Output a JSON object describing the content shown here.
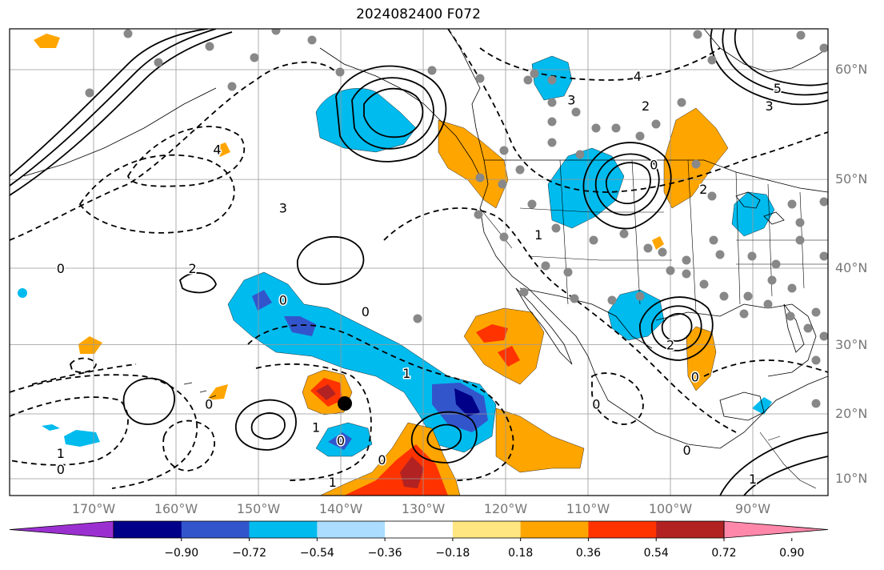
{
  "title": "2024082400 F072",
  "lat_labels": [
    {
      "label": "60°N",
      "lat": 60
    },
    {
      "label": "50°N",
      "lat": 50
    },
    {
      "label": "40°N",
      "lat": 40
    },
    {
      "label": "30°N",
      "lat": 30
    },
    {
      "label": "20°N",
      "lat": 20
    },
    {
      "label": "10°N",
      "lat": 10
    }
  ],
  "lon_labels": [
    {
      "label": "170°W",
      "lon": -170
    },
    {
      "label": "160°W",
      "lon": -160
    },
    {
      "label": "150°W",
      "lon": -150
    },
    {
      "label": "140°W",
      "lon": -140
    },
    {
      "label": "130°W",
      "lon": -130
    },
    {
      "label": "120°W",
      "lon": -120
    },
    {
      "label": "110°W",
      "lon": -110
    },
    {
      "label": "100°W",
      "lon": -100
    },
    {
      "label": "90°W",
      "lon": -90
    }
  ],
  "colorbar": {
    "colors": [
      "#9b30d0",
      "#000088",
      "#3355cc",
      "#00bbee",
      "#aaddff",
      "#ffffff",
      "#ffe680",
      "#ffa500",
      "#ff3300",
      "#b22222",
      "#ff88aa"
    ],
    "tick_labels": [
      "−0.90",
      "−0.72",
      "−0.54",
      "−0.36",
      "−0.18",
      "0.18",
      "0.36",
      "0.54",
      "0.72",
      "0.90"
    ]
  },
  "contour_labels": [
    {
      "text": "0",
      "lon": -174,
      "lat": 40
    },
    {
      "text": "2",
      "lon": -158,
      "lat": 40
    },
    {
      "text": "3",
      "lon": -147,
      "lat": 47
    },
    {
      "text": "4",
      "lon": -155,
      "lat": 53
    },
    {
      "text": "0",
      "lon": -147,
      "lat": 36
    },
    {
      "text": "0",
      "lon": -137,
      "lat": 34.5
    },
    {
      "text": "1",
      "lon": -132,
      "lat": 26
    },
    {
      "text": "0",
      "lon": -156,
      "lat": 21.5
    },
    {
      "text": "1",
      "lon": -143,
      "lat": 18
    },
    {
      "text": "0",
      "lon": -140,
      "lat": 16
    },
    {
      "text": "0",
      "lon": -135,
      "lat": 13
    },
    {
      "text": "1",
      "lon": -141,
      "lat": 9.5
    },
    {
      "text": "1",
      "lon": -174,
      "lat": 14
    },
    {
      "text": "0",
      "lon": -174,
      "lat": 11.5
    },
    {
      "text": "1",
      "lon": -116,
      "lat": 44
    },
    {
      "text": "2",
      "lon": -103,
      "lat": 57
    },
    {
      "text": "3",
      "lon": -112,
      "lat": 57.5
    },
    {
      "text": "4",
      "lon": -104,
      "lat": 59.5
    },
    {
      "text": "2",
      "lon": -96,
      "lat": 49
    },
    {
      "text": "5",
      "lon": -87,
      "lat": 58.5
    },
    {
      "text": "3",
      "lon": -88,
      "lat": 57
    },
    {
      "text": "0",
      "lon": -102,
      "lat": 51.5
    },
    {
      "text": "0",
      "lon": -109,
      "lat": 21.5
    },
    {
      "text": "0",
      "lon": -97,
      "lat": 25.5
    },
    {
      "text": "2",
      "lon": -100,
      "lat": 30
    },
    {
      "text": "0",
      "lon": -98,
      "lat": 14.5
    },
    {
      "text": "1",
      "lon": -90,
      "lat": 10
    }
  ]
}
